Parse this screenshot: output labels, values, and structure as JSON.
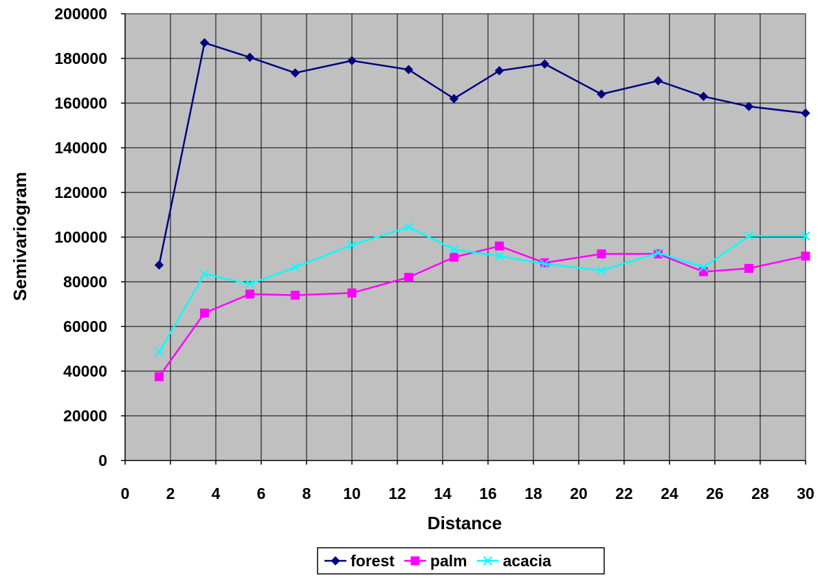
{
  "chart_data": {
    "type": "line",
    "title": "",
    "xlabel": "Distance",
    "ylabel": "Semivariogram",
    "xlim": [
      0,
      30
    ],
    "ylim": [
      0,
      200000
    ],
    "x_ticks": [
      "0",
      "2",
      "4",
      "6",
      "8",
      "10",
      "12",
      "14",
      "16",
      "18",
      "20",
      "22",
      "24",
      "26",
      "28",
      "30"
    ],
    "y_ticks": [
      "0",
      "20000",
      "40000",
      "60000",
      "80000",
      "100000",
      "120000",
      "140000",
      "160000",
      "180000",
      "200000"
    ],
    "grid": true,
    "plot_background": "#c0c0c0",
    "legend_position": "bottom",
    "series": [
      {
        "name": "forest",
        "color": "#000080",
        "marker": "diamond",
        "x": [
          1.5,
          3.5,
          5.5,
          7.5,
          10,
          12.5,
          14.5,
          16.5,
          18.5,
          21,
          23.5,
          25.5,
          27.5,
          30
        ],
        "values": [
          87500,
          187000,
          180500,
          173500,
          179000,
          175000,
          162000,
          174500,
          177500,
          164000,
          170000,
          163000,
          158500,
          155500
        ]
      },
      {
        "name": "palm",
        "color": "#ff00ff",
        "marker": "square",
        "x": [
          1.5,
          3.5,
          5.5,
          7.5,
          10,
          12.5,
          14.5,
          16.5,
          18.5,
          21,
          23.5,
          25.5,
          27.5,
          30
        ],
        "values": [
          37500,
          66000,
          74500,
          74000,
          75000,
          82000,
          91000,
          96000,
          88500,
          92500,
          92500,
          84500,
          86000,
          91500
        ]
      },
      {
        "name": "acacia",
        "color": "#00ffff",
        "marker": "x",
        "x": [
          1.5,
          3.5,
          5.5,
          7.5,
          10,
          12.5,
          14.5,
          16.5,
          18.5,
          21,
          23.5,
          25.5,
          27.5,
          30
        ],
        "values": [
          48500,
          83500,
          79000,
          86500,
          96500,
          104500,
          94500,
          91500,
          88000,
          85000,
          93000,
          86500,
          100500,
          100500
        ]
      }
    ]
  }
}
